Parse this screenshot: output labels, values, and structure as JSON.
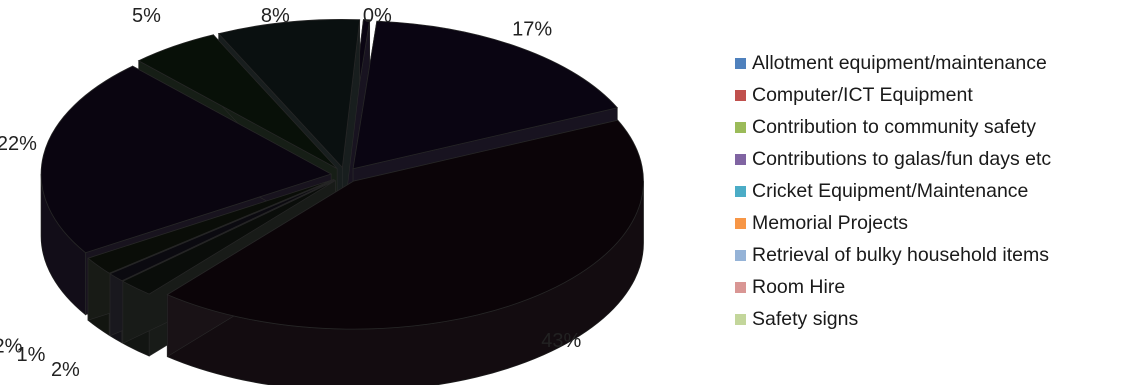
{
  "chart_data": {
    "type": "pie",
    "title": "",
    "series": [
      {
        "label": "Allotment equipment/maintenance",
        "value": 0,
        "value_label": "0%",
        "legend_color": "#4f81bd"
      },
      {
        "label": "Computer/ICT Equipment",
        "value": 17,
        "value_label": "17%",
        "legend_color": "#c0504d"
      },
      {
        "label": "Contribution to community safety",
        "value": 43,
        "value_label": "43%",
        "legend_color": "#9bbb59"
      },
      {
        "label": "Contributions to galas/fun days etc",
        "value": 2,
        "value_label": "2%",
        "legend_color": "#8064a2"
      },
      {
        "label": "Cricket Equipment/Maintenance",
        "value": 1,
        "value_label": "1%",
        "legend_color": "#4bacc6"
      },
      {
        "label": "Memorial Projects",
        "value": 2,
        "value_label": "2%",
        "legend_color": "#f79646"
      },
      {
        "label": "Retrieval of bulky household items",
        "value": 22,
        "value_label": "22%",
        "legend_color": "#95b3d7"
      },
      {
        "label": "Room Hire",
        "value": 5,
        "value_label": "5%",
        "legend_color": "#d99694"
      },
      {
        "label": "Safety signs",
        "value": 8,
        "value_label": "8%",
        "legend_color": "#c3d69b"
      }
    ],
    "slice_fill_colors": [
      "#0a0512",
      "#0a0512",
      "#0b0408",
      "#0a0d0a",
      "#0b0a10",
      "#0a0d08",
      "#0a0510",
      "#081008",
      "#0a1010"
    ],
    "legend_position": "right",
    "style": "3d-exploded"
  }
}
